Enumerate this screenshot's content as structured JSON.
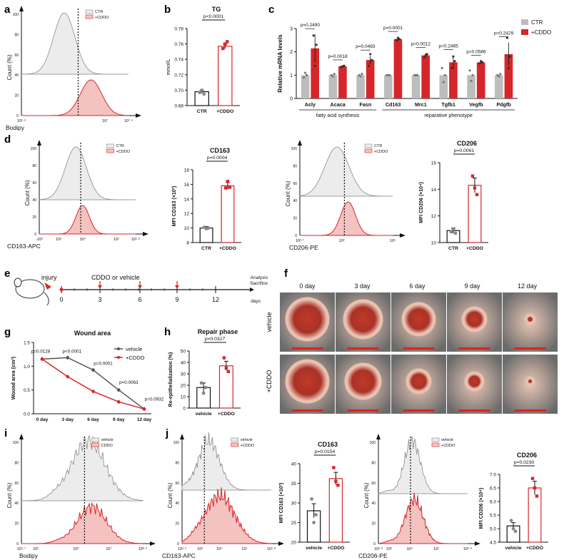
{
  "panel_labels": [
    "a",
    "b",
    "c",
    "d",
    "e",
    "f",
    "g",
    "h",
    "i",
    "j"
  ],
  "colors": {
    "ctr": "#9a9a9a",
    "treat": "#d7262a",
    "treat_fill": "#f4c2c0",
    "ctr_fill": "#ececec",
    "ctr_bar": "#bdbdbd"
  },
  "panel_a": {
    "legend": [
      "CTR",
      "+CDDO"
    ],
    "xlabel": "Bodipy",
    "ylabel": "Count (%)",
    "yticks": [
      "0",
      "20",
      "40",
      "60",
      "80",
      "100"
    ],
    "xticks": [
      "10^5.9",
      "10^7",
      "10^7.4"
    ]
  },
  "panel_b": {
    "title": "TG",
    "ylabel": "mmol/L",
    "yticks": [
      "0.68",
      "0.70",
      "0.72",
      "0.74",
      "0.76",
      "0.78"
    ],
    "groups": [
      "CTR",
      "+CDDO"
    ],
    "p": "p<0.0001"
  },
  "panel_c": {
    "ylabel": "Relative mRNA levels",
    "yticks": [
      "0",
      "1",
      "2",
      "3"
    ],
    "genes": [
      "Acly",
      "Acaca",
      "Fasn",
      "Cd163",
      "Mrc1",
      "Tgfb1",
      "Vegfb",
      "Pdgfb"
    ],
    "pvalues": [
      "p=0.2490",
      "p=0.0018",
      "p=0.0493",
      "p=0.0001",
      "p=0.0012",
      "p=0.2465",
      "p=0.0586",
      "p=0.2429"
    ],
    "legend": [
      "CTR",
      "+CDDO"
    ],
    "group1": "fatty acid synthesis",
    "group2": "reparative phenotype"
  },
  "panel_d1": {
    "legend": [
      "CTR",
      "+CDDO"
    ],
    "xlabel": "CD163-APC",
    "ylabel": "Count (%)",
    "yticks": [
      "0",
      "20",
      "40",
      "60",
      "80",
      "100"
    ],
    "xticks": [
      "-10^3",
      "10^3",
      "10^4",
      "10^5",
      "10^5.6"
    ]
  },
  "panel_d2": {
    "title": "CD163",
    "ylabel": "MFI CD163 (×10³)",
    "yticks": [
      "8",
      "10",
      "12",
      "14",
      "16",
      "18"
    ],
    "groups": [
      "CTR",
      "+CDDO"
    ],
    "p": "p=0.0004"
  },
  "panel_d3": {
    "legend": [
      "CTR",
      "+CDDO"
    ],
    "xlabel": "CD206-PE",
    "ylabel": "Count (%)",
    "yticks": [
      "0",
      "20",
      "40",
      "60",
      "80",
      "100"
    ],
    "xticks": [
      "10^2.7",
      "10^3",
      "10^5"
    ]
  },
  "panel_d4": {
    "title": "CD206",
    "ylabel": "MFI CD206 (×10⁴)",
    "yticks": [
      "10",
      "12",
      "14",
      "16"
    ],
    "groups": [
      "CTR",
      "+CDDO"
    ],
    "p": "p=0.0061"
  },
  "panel_e": {
    "injury": "injury",
    "treatment": "CDDO or vehicle",
    "analysis": "Analysis",
    "sacrifice": "Sacrifice",
    "ticks": [
      "0",
      "3",
      "6",
      "9",
      "12"
    ],
    "unit": "days"
  },
  "panel_f": {
    "days": [
      "0 day",
      "3 day",
      "6 day",
      "9 day",
      "12 day"
    ],
    "rows": [
      "vehicle",
      "+CDDO"
    ]
  },
  "panel_g": {
    "title": "Wound area",
    "ylabel": "Wound area (cm²)",
    "yticks": [
      "0.0",
      "0.5",
      "1.0",
      "1.5"
    ],
    "legend": [
      "vehicle",
      "+CDDO"
    ]
  },
  "panel_h": {
    "title": "Repair phase",
    "ylabel": "Re-epithelialization (%)",
    "yticks": [
      "0",
      "10",
      "20",
      "30",
      "40",
      "50"
    ],
    "groups": [
      "vehicle",
      "+CDDO"
    ],
    "p": "p=0.0327"
  },
  "panel_i": {
    "legend": [
      "vehicle",
      "CDDO"
    ],
    "xlabel": "Bodipy",
    "ylabel": "Count (%)",
    "yticks": [
      "0",
      "20",
      "40",
      "60",
      "80",
      "100"
    ],
    "xticks": [
      "10^4.7",
      "10^5",
      "10^6",
      "10^7",
      "10^8.4"
    ]
  },
  "panel_j1": {
    "legend": [
      "vehicle",
      "+CDDO"
    ],
    "xlabel": "CD163-APC",
    "ylabel": "Count (%)",
    "yticks": [
      "0",
      "20",
      "40",
      "60",
      "80",
      "100"
    ],
    "xticks": [
      "10^2.5",
      "10^3",
      "10^4",
      "10^5",
      "10^5.9"
    ]
  },
  "panel_j2": {
    "title": "CD163",
    "ylabel": "MFI CD163 (×10³)",
    "yticks": [
      "20",
      "25",
      "30",
      "35",
      "40"
    ],
    "groups": [
      "vehicle",
      "+CDDO"
    ],
    "p": "p=0.0154"
  },
  "panel_j3": {
    "legend": [
      "vehicle",
      "+CDDO"
    ],
    "xlabel": "CD206-PE",
    "ylabel": "Count (%)",
    "yticks": [
      "0",
      "20",
      "40",
      "60",
      "80",
      "100"
    ],
    "xticks": [
      "10^2.9",
      "10^3",
      "10^4",
      "10^5",
      "10^5.6"
    ]
  },
  "panel_j4": {
    "title": "CD206",
    "ylabel": "MFI CD206 (×10⁴)",
    "yticks": [
      "4.5",
      "5.0",
      "5.5",
      "6.0",
      "6.5",
      "7.0"
    ],
    "groups": [
      "vehicle",
      "+CDDO"
    ],
    "p": "p=0.0230"
  },
  "chart_data": [
    {
      "type": "bar",
      "title": "TG",
      "ylabel": "mmol/L",
      "categories": [
        "CTR",
        "+CDDO"
      ],
      "values": [
        0.698,
        0.757
      ],
      "ylim": [
        0.68,
        0.78
      ]
    },
    {
      "type": "bar",
      "ylabel": "Relative mRNA levels",
      "categories": [
        "Acly",
        "Acaca",
        "Fasn",
        "Cd163",
        "Mrc1",
        "Tgfb1",
        "Vegfb",
        "Pdgfb"
      ],
      "series": [
        {
          "name": "CTR",
          "values": [
            1.0,
            1.0,
            1.0,
            1.0,
            1.0,
            1.0,
            1.0,
            1.0
          ]
        },
        {
          "name": "+CDDO",
          "values": [
            2.15,
            1.38,
            1.65,
            2.55,
            1.85,
            1.55,
            1.55,
            1.9
          ]
        }
      ],
      "ylim": [
        0,
        3
      ]
    },
    {
      "type": "bar",
      "title": "CD163",
      "categories": [
        "CTR",
        "+CDDO"
      ],
      "values": [
        10.0,
        15.8
      ],
      "ylim": [
        8,
        18
      ]
    },
    {
      "type": "bar",
      "title": "CD206",
      "categories": [
        "CTR",
        "+CDDO"
      ],
      "values": [
        10.9,
        14.3
      ],
      "ylim": [
        10,
        16
      ]
    },
    {
      "type": "line",
      "title": "Wound area",
      "ylabel": "Wound area (cm²)",
      "x": [
        "0 day",
        "3 day",
        "6 day",
        "9 day",
        "12 day"
      ],
      "series": [
        {
          "name": "vehicle",
          "values": [
            1.15,
            1.18,
            0.92,
            0.5,
            0.1
          ]
        },
        {
          "name": "+CDDO",
          "values": [
            1.15,
            0.78,
            0.47,
            0.25,
            0.1
          ]
        }
      ],
      "pvalues": [
        "p=0.0128",
        "p<0.0001",
        "p=0.0001",
        "p=0.0063",
        "p=0.0932"
      ],
      "ylim": [
        0,
        1.5
      ]
    },
    {
      "type": "bar",
      "title": "Repair phase",
      "categories": [
        "vehicle",
        "+CDDO"
      ],
      "values": [
        18,
        37
      ],
      "ylim": [
        0,
        50
      ]
    },
    {
      "type": "bar",
      "title": "CD163",
      "categories": [
        "vehicle",
        "+CDDO"
      ],
      "values": [
        28,
        36.2
      ],
      "ylim": [
        20,
        40
      ]
    },
    {
      "type": "bar",
      "title": "CD206",
      "categories": [
        "vehicle",
        "+CDDO"
      ],
      "values": [
        5.1,
        6.5
      ],
      "ylim": [
        4.5,
        7.0
      ]
    }
  ]
}
